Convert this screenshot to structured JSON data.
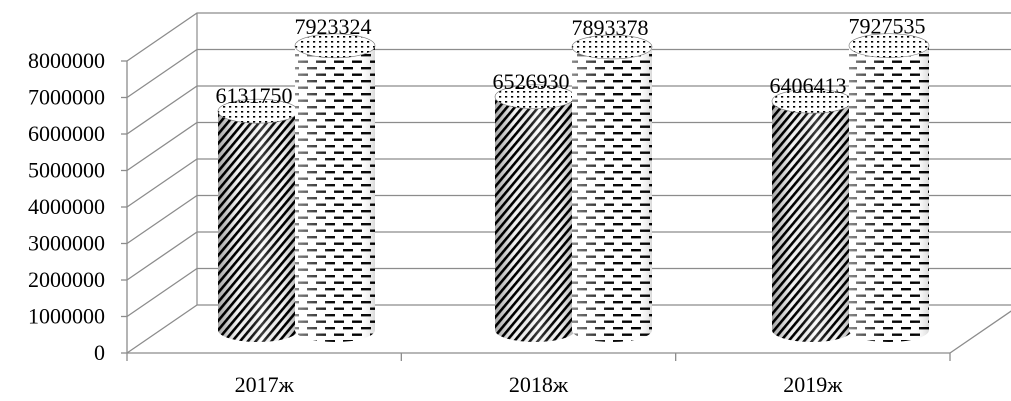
{
  "chart_data": {
    "type": "bar",
    "style": "3d-cylinder",
    "categories": [
      "2017ж",
      "2018ж",
      "2019ж"
    ],
    "series": [
      {
        "values": [
          6131750,
          6526930,
          6406413
        ],
        "pattern": "diagonal-stripes"
      },
      {
        "values": [
          7923324,
          7893378,
          7927535
        ],
        "pattern": "dashes"
      }
    ],
    "data_labels": [
      [
        "6131750",
        "6526930",
        "6406413"
      ],
      [
        "7923324",
        "7893378",
        "7927535"
      ]
    ],
    "ylim": [
      0,
      8000000
    ],
    "yticks": [
      0,
      1000000,
      2000000,
      3000000,
      4000000,
      5000000,
      6000000,
      7000000,
      8000000
    ],
    "ytick_labels": [
      "0",
      "1000000",
      "2000000",
      "3000000",
      "4000000",
      "5000000",
      "6000000",
      "7000000",
      "8000000"
    ],
    "grid": true,
    "legend": "none",
    "title": "",
    "xlabel": "",
    "ylabel": ""
  }
}
